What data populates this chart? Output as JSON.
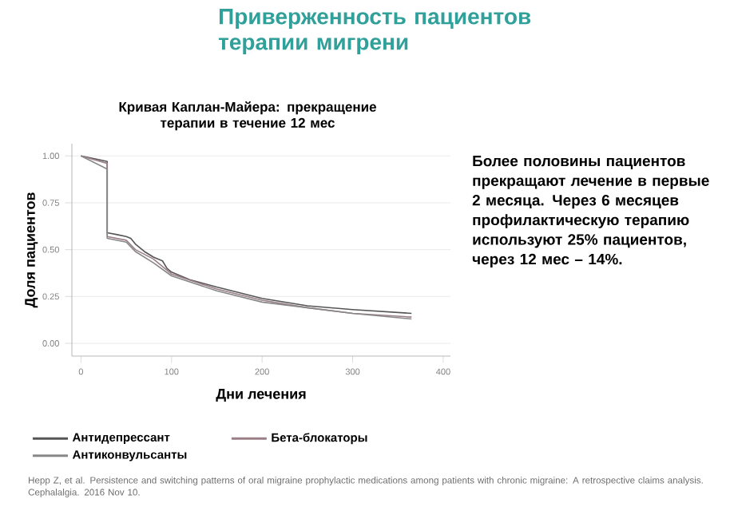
{
  "chart_data": {
    "type": "line",
    "title": "Приверженность пациентов терапии мигрени",
    "subtitle": "Кривая Каплан-Майера: прекращение терапии в течение 12 мес",
    "xlabel": "Дни лечения",
    "ylabel": "Доля пациентов",
    "xlim": [
      -10,
      408
    ],
    "ylim": [
      -0.068,
      1.065
    ],
    "xticks": [
      0,
      100,
      200,
      300,
      400
    ],
    "yticks": [
      {
        "value": 0,
        "label": "0.00"
      },
      {
        "value": 0.25,
        "label": "0.25"
      },
      {
        "value": 0.5,
        "label": "0.50"
      },
      {
        "value": 0.75,
        "label": "0.75"
      },
      {
        "value": 1,
        "label": "1.00"
      }
    ],
    "grid": "y",
    "legend": "bottom",
    "marker": "none",
    "line_style": "solid",
    "series": [
      {
        "name": "Антидепрессант",
        "color": "#555555",
        "x": [
          0,
          10,
          20,
          29,
          29,
          40,
          50,
          55,
          60,
          70,
          80,
          90,
          95,
          100,
          120,
          150,
          200,
          250,
          300,
          365
        ],
        "values": [
          1.0,
          0.99,
          0.98,
          0.97,
          0.59,
          0.58,
          0.57,
          0.56,
          0.53,
          0.49,
          0.46,
          0.44,
          0.4,
          0.38,
          0.34,
          0.3,
          0.24,
          0.2,
          0.18,
          0.16
        ]
      },
      {
        "name": "Бета-блокаторы",
        "color": "#9a7f86",
        "x": [
          0,
          29,
          29,
          50,
          60,
          80,
          100,
          150,
          200,
          250,
          300,
          365
        ],
        "values": [
          1.0,
          0.96,
          0.57,
          0.55,
          0.5,
          0.45,
          0.37,
          0.29,
          0.23,
          0.19,
          0.16,
          0.14
        ]
      },
      {
        "name": "Антиконвульсанты",
        "color": "#888888",
        "x": [
          0,
          29,
          29,
          50,
          60,
          80,
          100,
          150,
          200,
          250,
          300,
          365
        ],
        "values": [
          1.0,
          0.93,
          0.56,
          0.54,
          0.49,
          0.43,
          0.36,
          0.28,
          0.22,
          0.19,
          0.16,
          0.13
        ]
      }
    ],
    "annotations": [
      "Более половины пациентов прекращают лечение в первые 2 месяца. Через 6 месяцев профилактическую терапию используют 25% пациентов, через 12 мес – 14%.",
      "Hepp Z, et al. Persistence and switching patterns of oral migraine prophylactic medications among patients with chronic migraine: A retrospective claims analysis. Cephalalgia. 2016 Nov 10."
    ]
  }
}
